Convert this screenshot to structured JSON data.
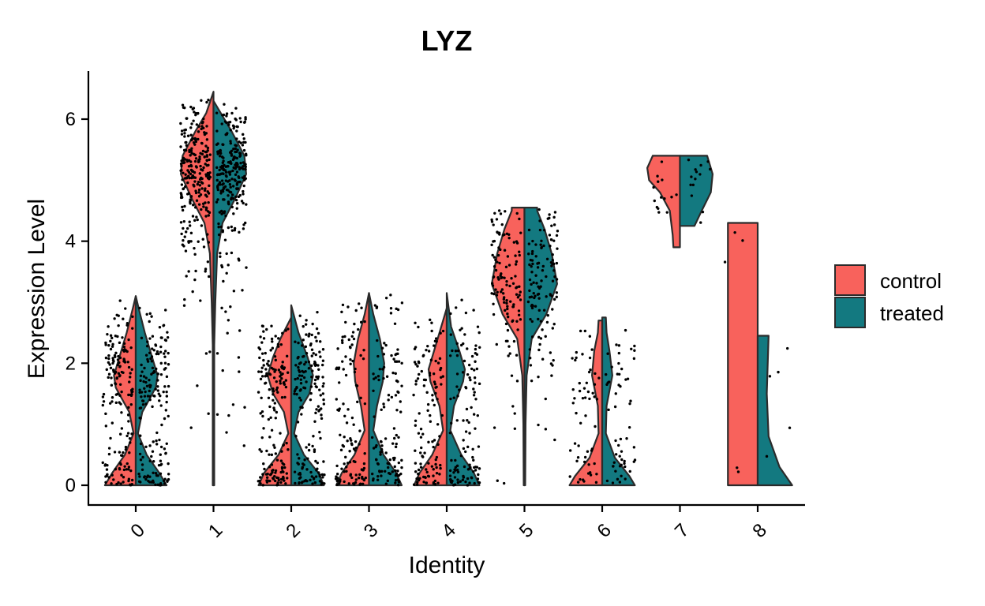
{
  "chart_data": {
    "type": "violin",
    "title": "LYZ",
    "xlabel": "Identity",
    "ylabel": "Expression Level",
    "categories": [
      "0",
      "1",
      "2",
      "3",
      "4",
      "5",
      "6",
      "7",
      "8"
    ],
    "yticks": [
      0,
      2,
      4,
      6
    ],
    "ylim": [
      -0.3,
      6.8
    ],
    "grid": false,
    "legend_position": "right",
    "split": true,
    "series": [
      {
        "name": "control",
        "color": "#F8625C",
        "violins": [
          {
            "category": "0",
            "min": 0,
            "max": 3.1,
            "profile": [
              [
                0,
                0.85
              ],
              [
                0.2,
                0.65
              ],
              [
                0.5,
                0.3
              ],
              [
                0.85,
                0.06
              ],
              [
                1.2,
                0.18
              ],
              [
                1.6,
                0.55
              ],
              [
                1.8,
                0.6
              ],
              [
                2.1,
                0.45
              ],
              [
                2.5,
                0.25
              ],
              [
                2.9,
                0.08
              ],
              [
                3.1,
                0
              ]
            ]
          },
          {
            "category": "1",
            "min": 0,
            "max": 6.45,
            "profile": [
              [
                0,
                0.02
              ],
              [
                2.3,
                0.02
              ],
              [
                3.0,
                0.05
              ],
              [
                3.8,
                0.1
              ],
              [
                4.3,
                0.25
              ],
              [
                4.7,
                0.6
              ],
              [
                5.1,
                0.9
              ],
              [
                5.4,
                0.85
              ],
              [
                5.8,
                0.5
              ],
              [
                6.1,
                0.2
              ],
              [
                6.45,
                0
              ]
            ]
          },
          {
            "category": "2",
            "min": 0,
            "max": 2.75,
            "profile": [
              [
                0,
                0.9
              ],
              [
                0.2,
                0.75
              ],
              [
                0.5,
                0.35
              ],
              [
                0.85,
                0.08
              ],
              [
                1.2,
                0.2
              ],
              [
                1.5,
                0.5
              ],
              [
                1.8,
                0.65
              ],
              [
                2.1,
                0.5
              ],
              [
                2.4,
                0.3
              ],
              [
                2.75,
                0
              ]
            ]
          },
          {
            "category": "3",
            "min": 0,
            "max": 3.15,
            "profile": [
              [
                0,
                0.9
              ],
              [
                0.2,
                0.75
              ],
              [
                0.5,
                0.4
              ],
              [
                0.9,
                0.12
              ],
              [
                1.3,
                0.22
              ],
              [
                1.7,
                0.38
              ],
              [
                2.0,
                0.42
              ],
              [
                2.4,
                0.3
              ],
              [
                2.8,
                0.12
              ],
              [
                3.15,
                0
              ]
            ]
          },
          {
            "category": "4",
            "min": 0,
            "max": 2.9,
            "profile": [
              [
                0,
                0.9
              ],
              [
                0.2,
                0.75
              ],
              [
                0.5,
                0.4
              ],
              [
                0.9,
                0.1
              ],
              [
                1.3,
                0.2
              ],
              [
                1.7,
                0.45
              ],
              [
                1.9,
                0.5
              ],
              [
                2.2,
                0.35
              ],
              [
                2.6,
                0.15
              ],
              [
                2.9,
                0
              ]
            ]
          },
          {
            "category": "5",
            "min": 0,
            "max": 4.55,
            "profile": [
              [
                0,
                0.02
              ],
              [
                1.0,
                0.03
              ],
              [
                1.8,
                0.06
              ],
              [
                2.4,
                0.2
              ],
              [
                2.8,
                0.6
              ],
              [
                3.3,
                0.9
              ],
              [
                3.8,
                0.75
              ],
              [
                4.2,
                0.55
              ],
              [
                4.5,
                0.35
              ],
              [
                4.55,
                0.35
              ]
            ]
          },
          {
            "category": "6",
            "min": 0,
            "max": 2.7,
            "profile": [
              [
                0,
                0.9
              ],
              [
                0.15,
                0.75
              ],
              [
                0.45,
                0.35
              ],
              [
                0.85,
                0.1
              ],
              [
                1.3,
                0.12
              ],
              [
                1.8,
                0.28
              ],
              [
                2.2,
                0.22
              ],
              [
                2.5,
                0.12
              ],
              [
                2.7,
                0.1
              ]
            ]
          },
          {
            "category": "7",
            "min": 3.9,
            "max": 5.4,
            "profile": [
              [
                3.9,
                0.18
              ],
              [
                4.1,
                0.2
              ],
              [
                4.5,
                0.28
              ],
              [
                4.8,
                0.55
              ],
              [
                5.0,
                0.85
              ],
              [
                5.2,
                0.9
              ],
              [
                5.4,
                0.75
              ]
            ]
          },
          {
            "category": "8",
            "min": 0,
            "max": 4.3,
            "profile": [
              [
                0,
                0.82
              ],
              [
                4.3,
                0.82
              ]
            ]
          }
        ]
      },
      {
        "name": "treated",
        "color": "#137980",
        "violins": [
          {
            "category": "0",
            "min": 0,
            "max": 3.1,
            "profile": [
              [
                0,
                0.85
              ],
              [
                0.2,
                0.65
              ],
              [
                0.5,
                0.3
              ],
              [
                0.85,
                0.06
              ],
              [
                1.2,
                0.18
              ],
              [
                1.6,
                0.55
              ],
              [
                1.8,
                0.6
              ],
              [
                2.1,
                0.45
              ],
              [
                2.5,
                0.25
              ],
              [
                2.9,
                0.08
              ],
              [
                3.1,
                0
              ]
            ]
          },
          {
            "category": "1",
            "min": 0,
            "max": 6.3,
            "profile": [
              [
                0,
                0.02
              ],
              [
                2.3,
                0.02
              ],
              [
                3.0,
                0.05
              ],
              [
                3.8,
                0.1
              ],
              [
                4.3,
                0.25
              ],
              [
                4.7,
                0.6
              ],
              [
                5.1,
                0.9
              ],
              [
                5.4,
                0.85
              ],
              [
                5.8,
                0.5
              ],
              [
                6.1,
                0.2
              ],
              [
                6.3,
                0
              ]
            ]
          },
          {
            "category": "2",
            "min": 0,
            "max": 2.95,
            "profile": [
              [
                0,
                0.9
              ],
              [
                0.2,
                0.75
              ],
              [
                0.5,
                0.35
              ],
              [
                0.85,
                0.08
              ],
              [
                1.2,
                0.2
              ],
              [
                1.5,
                0.5
              ],
              [
                1.8,
                0.6
              ],
              [
                2.1,
                0.45
              ],
              [
                2.5,
                0.2
              ],
              [
                2.95,
                0
              ]
            ]
          },
          {
            "category": "3",
            "min": 0,
            "max": 3.15,
            "profile": [
              [
                0,
                0.9
              ],
              [
                0.2,
                0.75
              ],
              [
                0.5,
                0.4
              ],
              [
                0.9,
                0.12
              ],
              [
                1.3,
                0.22
              ],
              [
                1.7,
                0.38
              ],
              [
                2.0,
                0.42
              ],
              [
                2.4,
                0.3
              ],
              [
                2.8,
                0.12
              ],
              [
                3.15,
                0
              ]
            ]
          },
          {
            "category": "4",
            "min": 0,
            "max": 3.15,
            "profile": [
              [
                0,
                0.9
              ],
              [
                0.2,
                0.75
              ],
              [
                0.5,
                0.4
              ],
              [
                0.9,
                0.1
              ],
              [
                1.3,
                0.2
              ],
              [
                1.7,
                0.45
              ],
              [
                1.9,
                0.5
              ],
              [
                2.2,
                0.35
              ],
              [
                2.6,
                0.12
              ],
              [
                3.15,
                0
              ]
            ]
          },
          {
            "category": "5",
            "min": 0,
            "max": 4.55,
            "profile": [
              [
                0,
                0.02
              ],
              [
                1.0,
                0.03
              ],
              [
                1.8,
                0.06
              ],
              [
                2.4,
                0.2
              ],
              [
                2.8,
                0.6
              ],
              [
                3.3,
                0.9
              ],
              [
                3.8,
                0.75
              ],
              [
                4.2,
                0.55
              ],
              [
                4.5,
                0.35
              ],
              [
                4.55,
                0.35
              ]
            ]
          },
          {
            "category": "6",
            "min": 0,
            "max": 2.75,
            "profile": [
              [
                0,
                0.9
              ],
              [
                0.15,
                0.75
              ],
              [
                0.45,
                0.35
              ],
              [
                0.85,
                0.1
              ],
              [
                1.3,
                0.12
              ],
              [
                1.8,
                0.28
              ],
              [
                2.2,
                0.2
              ],
              [
                2.5,
                0.12
              ],
              [
                2.75,
                0.1
              ]
            ]
          },
          {
            "category": "7",
            "min": 4.25,
            "max": 5.4,
            "profile": [
              [
                4.25,
                0.4
              ],
              [
                4.5,
                0.6
              ],
              [
                4.8,
                0.85
              ],
              [
                5.1,
                0.9
              ],
              [
                5.3,
                0.8
              ],
              [
                5.4,
                0.75
              ]
            ]
          },
          {
            "category": "8",
            "min": 0,
            "max": 2.45,
            "profile": [
              [
                0,
                0.95
              ],
              [
                0.3,
                0.6
              ],
              [
                0.8,
                0.3
              ],
              [
                1.5,
                0.25
              ],
              [
                2.45,
                0.3
              ]
            ]
          }
        ]
      }
    ]
  }
}
